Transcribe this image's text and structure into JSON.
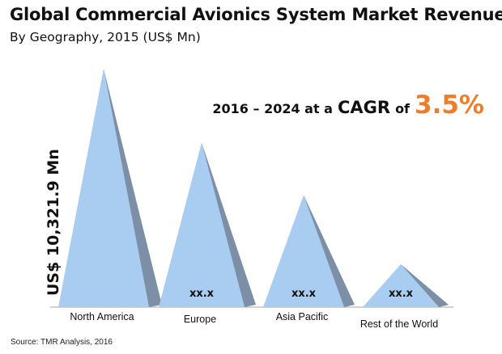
{
  "header": {
    "title": "Global Commercial Avionics System Market Revenue",
    "subtitle": "By Geography, 2015 (US$ Mn)"
  },
  "cagr": {
    "period": "2016 – 2024 at a",
    "label": "CAGR",
    "of": "of",
    "rate": "3.5%"
  },
  "footer": {
    "source": "Source: TMR Analysis, 2016"
  },
  "colors": {
    "pyramid_front": "#a9cdf1",
    "pyramid_side": "#7c8fa6",
    "baseline": "#b8b8b8",
    "accent": "#f07c2a"
  },
  "chart_data": {
    "type": "bar",
    "title": "Global Commercial Avionics System Market Revenue",
    "subtitle": "By Geography, 2015 (US$ Mn)",
    "ylabel": "US$ 10,321.9 Mn",
    "xlabel": "",
    "categories": [
      "North America",
      "Europe",
      "Asia Pacific",
      "Rest of the World"
    ],
    "values": [
      100,
      69,
      47,
      18
    ],
    "value_labels": [
      "",
      "xx.x",
      "xx.x",
      "xx.x"
    ],
    "value_unit": "percent of tallest bar (relative heights, values not printed)",
    "total": "US$ 10,321.9 Mn",
    "legend": "none",
    "grid": false
  }
}
